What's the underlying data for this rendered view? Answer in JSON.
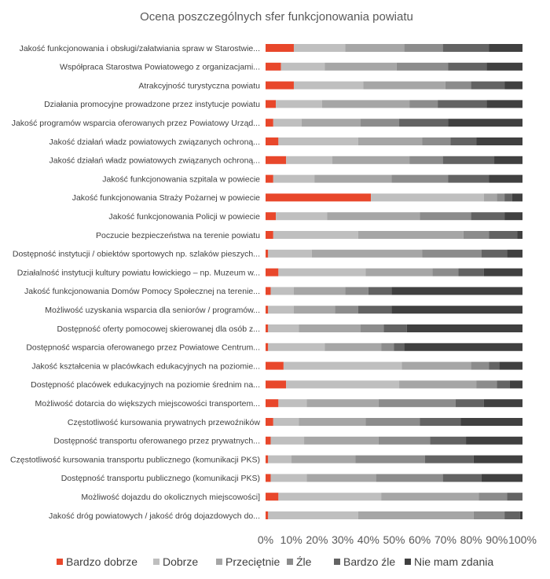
{
  "chart_data": {
    "type": "bar",
    "orientation": "horizontal",
    "stacked": "percent",
    "title": "Ocena poszczególnych sfer funkcjonowania powiatu",
    "xlim": [
      0,
      100
    ],
    "x_ticks": [
      "0%",
      "10%",
      "20%",
      "30%",
      "40%",
      "50%",
      "60%",
      "70%",
      "80%",
      "90%",
      "100%"
    ],
    "legend_position": "bottom",
    "grid": false,
    "categories": [
      "Jakość funkcjonowania i obsługi/załatwiania spraw w Starostwie...",
      "Współpraca Starostwa Powiatowego z organizacjami...",
      "Atrakcyjność turystyczna powiatu",
      "Działania promocyjne prowadzone przez instytucje powiatu",
      "Jakość programów wsparcia oferowanych przez Powiatowy Urząd...",
      "Jakość działań władz powiatowych związanych ochroną...",
      "Jakość działań władz powiatowych związanych ochroną...",
      "Jakość funkcjonowania szpitala w powiecie",
      "Jakość funkcjonowania Straży Pożarnej w powiecie",
      "Jakość funkcjonowania Policji w powiecie",
      "Poczucie bezpieczeństwa na terenie powiatu",
      "Dostępność instytucji / obiektów sportowych np. szlaków pieszych...",
      "Działalność instytucji kultury powiatu łowickiego – np. Muzeum w...",
      "Jakość funkcjonowania Domów Pomocy Społecznej na terenie...",
      "Możliwość uzyskania wsparcia dla seniorów / programów...",
      "Dostępność oferty pomocowej skierowanej dla osób z...",
      "Dostępność wsparcia oferowanego przez Powiatowe Centrum...",
      "Jakość kształcenia w placówkach edukacyjnych na poziomie...",
      "Dostępność placówek edukacyjnych na poziomie średnim na...",
      "Możliwość dotarcia do większych miejscowości transportem...",
      "Częstotliwość kursowania prywatnych przewoźników",
      "Dostępność transportu oferowanego przez prywatnych...",
      "Częstotliwość kursowania transportu publicznego (komunikacji PKS)",
      "Dostępność transportu publicznego (komunikacji PKS)",
      "Możliwość dojazdu do okolicznych miejscowości]",
      "Jakość dróg powiatowych / jakość dróg dojazdowych do..."
    ],
    "series": [
      {
        "name": "Bardzo dobrze",
        "color": "#e8472b",
        "values": [
          11,
          6,
          11,
          4,
          3,
          5,
          8,
          3,
          41,
          4,
          3,
          1,
          5,
          2,
          1,
          1,
          1,
          7,
          8,
          5,
          3,
          2,
          1,
          2,
          5,
          1
        ]
      },
      {
        "name": "Dobrze",
        "color": "#bfbfbf",
        "values": [
          20,
          17,
          27,
          18,
          11,
          31,
          18,
          16,
          44,
          20,
          33,
          17,
          34,
          9,
          10,
          12,
          22,
          46,
          44,
          11,
          10,
          13,
          9,
          14,
          40,
          35
        ]
      },
      {
        "name": "Przeciętnie",
        "color": "#a6a6a6",
        "values": [
          23,
          28,
          32,
          34,
          23,
          25,
          30,
          30,
          5,
          36,
          41,
          43,
          26,
          20,
          16,
          24,
          22,
          27,
          30,
          28,
          26,
          29,
          25,
          27,
          38,
          45
        ]
      },
      {
        "name": "Źle",
        "color": "#8c8c8c",
        "values": [
          15,
          20,
          10,
          11,
          15,
          11,
          13,
          22,
          3,
          20,
          10,
          23,
          10,
          9,
          9,
          9,
          5,
          7,
          8,
          30,
          21,
          20,
          27,
          26,
          11,
          12
        ]
      },
      {
        "name": "Bardzo źle",
        "color": "#636363",
        "values": [
          18,
          15,
          13,
          19,
          19,
          10,
          20,
          16,
          3,
          13,
          11,
          10,
          10,
          9,
          13,
          9,
          4,
          4,
          5,
          11,
          16,
          14,
          19,
          15,
          6,
          6
        ]
      },
      {
        "name": "Nie mam zdania",
        "color": "#404040",
        "values": [
          13,
          14,
          7,
          14,
          29,
          18,
          11,
          13,
          4,
          7,
          2,
          6,
          15,
          51,
          51,
          45,
          46,
          9,
          5,
          15,
          24,
          22,
          19,
          16,
          0,
          1
        ]
      }
    ]
  }
}
